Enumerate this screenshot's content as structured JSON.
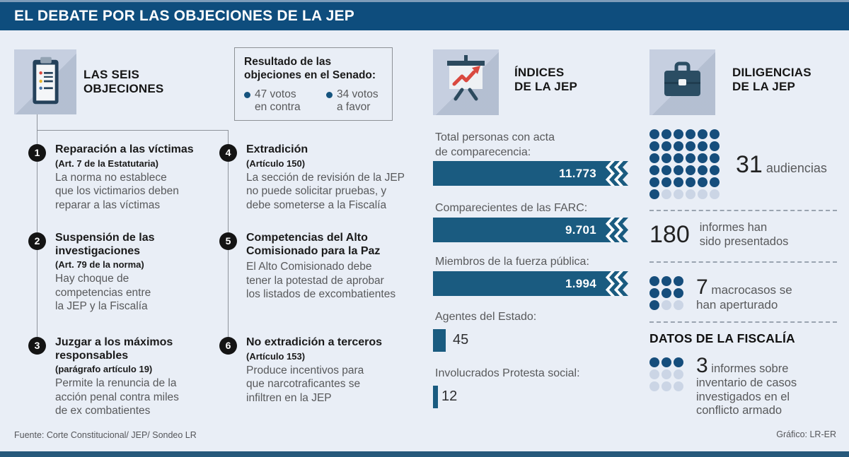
{
  "header": {
    "title": "EL DEBATE POR LAS OBJECIONES DE LA JEP"
  },
  "objections": {
    "icon": "clipboard-icon",
    "title": "LAS SEIS\nOBJECIONES",
    "senate_box": {
      "title": "Resultado de las\nobjeciones en el Senado:",
      "votes": [
        {
          "text": "47 votos\nen contra"
        },
        {
          "text": "34 votos\na favor"
        }
      ]
    },
    "items": [
      {
        "number": "1",
        "title": "Reparación a las víctimas",
        "article": "(Art. 7 de la Estatutaria)",
        "body": "La norma no establece\nque los victimarios deben\nreparar a las víctimas"
      },
      {
        "number": "2",
        "title": "Suspensión de las\ninvestigaciones",
        "article": "(Art. 79 de la norma)",
        "body": "Hay choque de\ncompetencias entre\nla JEP y la Fiscalía"
      },
      {
        "number": "3",
        "title": "Juzgar a los máximos\nresponsables",
        "article": "(parágrafo artículo 19)",
        "body": "Permite la renuncia de la\nacción penal contra miles\nde ex combatientes"
      },
      {
        "number": "4",
        "title": "Extradición",
        "article": "(Artículo 150)",
        "body": "La sección de revisión de la JEP\nno puede solicitar pruebas, y\ndebe someterse a la Fiscalía"
      },
      {
        "number": "5",
        "title": "Competencias del Alto\nComisionado para la Paz",
        "article": "",
        "body": "El Alto Comisionado debe\ntener la potestad de aprobar\nlos listados de excombatientes"
      },
      {
        "number": "6",
        "title": "No extradición a terceros",
        "article": "(Artículo 153)",
        "body": "Produce incentivos para\nque narcotraficantes se\ninfiltren en la JEP"
      }
    ]
  },
  "indices": {
    "icon": "presentation-chart-icon",
    "title": "ÍNDICES\nDE LA JEP",
    "bars": [
      {
        "label": "Total personas con acta\nde comparecencia:",
        "value": "11.773"
      },
      {
        "label": "Comparecientes de las FARC:",
        "value": "9.701"
      },
      {
        "label": "Miembros de la fuerza pública:",
        "value": "1.994"
      }
    ],
    "small_bars": [
      {
        "label": "Agentes del Estado:",
        "value": "45"
      },
      {
        "label": "Involucrados Protesta social:",
        "value": "12"
      }
    ]
  },
  "diligencias": {
    "icon": "briefcase-icon",
    "title": "DILIGENCIAS\nDE LA JEP",
    "stat_audiencias": {
      "number": "31",
      "text": " audiencias",
      "grid": {
        "cols": 6,
        "total": 36,
        "filled": 31
      }
    },
    "stat_informes": {
      "number": "180",
      "text": "informes han\nsido presentados"
    },
    "stat_macrocasos": {
      "number": "7",
      "text": " macrocasos se\nhan aperturado",
      "grid": {
        "cols": 3,
        "total": 9,
        "filled": 7
      }
    }
  },
  "fiscalia": {
    "heading": "DATOS DE LA FISCALÍA",
    "stat": {
      "number": "3",
      "text": " informes sobre\ninventario de casos\ninvestigados en el\nconflicto armado",
      "grid": {
        "cols": 3,
        "total": 9,
        "filled": 3
      }
    }
  },
  "footer": {
    "source": "Fuente: Corte Constitucional/ JEP/ Sondeo LR",
    "credit": "Gráfico: LR-ER"
  },
  "colors": {
    "header_bg": "#0e4d7d",
    "page_bg": "#e9eef6",
    "bar_blue": "#1a5b80",
    "dot_blue": "#164e7c",
    "dot_empty": "#cbd5e5",
    "icon_tile_bg": "#c6cfe0",
    "icon_navy": "#24415a",
    "accent_red": "#d9493f",
    "text_dark": "#1a1a1a",
    "text_gray": "#58595b",
    "bottom_bar": "#26597b"
  },
  "chart_data": [
    {
      "type": "bar",
      "orientation": "horizontal",
      "title": "ÍNDICES DE LA JEP",
      "categories": [
        "Total personas con acta de comparecencia",
        "Comparecientes de las FARC",
        "Miembros de la fuerza pública",
        "Agentes del Estado",
        "Involucrados Protesta social"
      ],
      "values": [
        11773,
        9701,
        1994,
        45,
        12
      ],
      "value_labels": [
        "11.773",
        "9.701",
        "1.994",
        "45",
        "12"
      ],
      "note": "first three bars drawn equal length with axis-break zigzag (broken scale)"
    },
    {
      "type": "bar",
      "title": "Resultado de las objeciones en el Senado",
      "categories": [
        "en contra",
        "a favor"
      ],
      "values": [
        47,
        34
      ]
    },
    {
      "type": "pictogram",
      "title": "DILIGENCIAS DE LA JEP",
      "items": [
        {
          "value": 31,
          "label": "audiencias",
          "grid_total": 36,
          "grid_cols": 6
        },
        {
          "value": 180,
          "label": "informes han sido presentados"
        },
        {
          "value": 7,
          "label": "macrocasos se han aperturado",
          "grid_total": 9,
          "grid_cols": 3
        }
      ]
    },
    {
      "type": "pictogram",
      "title": "DATOS DE LA FISCALÍA",
      "items": [
        {
          "value": 3,
          "label": "informes sobre inventario de casos investigados en el conflicto armado",
          "grid_total": 9,
          "grid_cols": 3
        }
      ]
    }
  ]
}
